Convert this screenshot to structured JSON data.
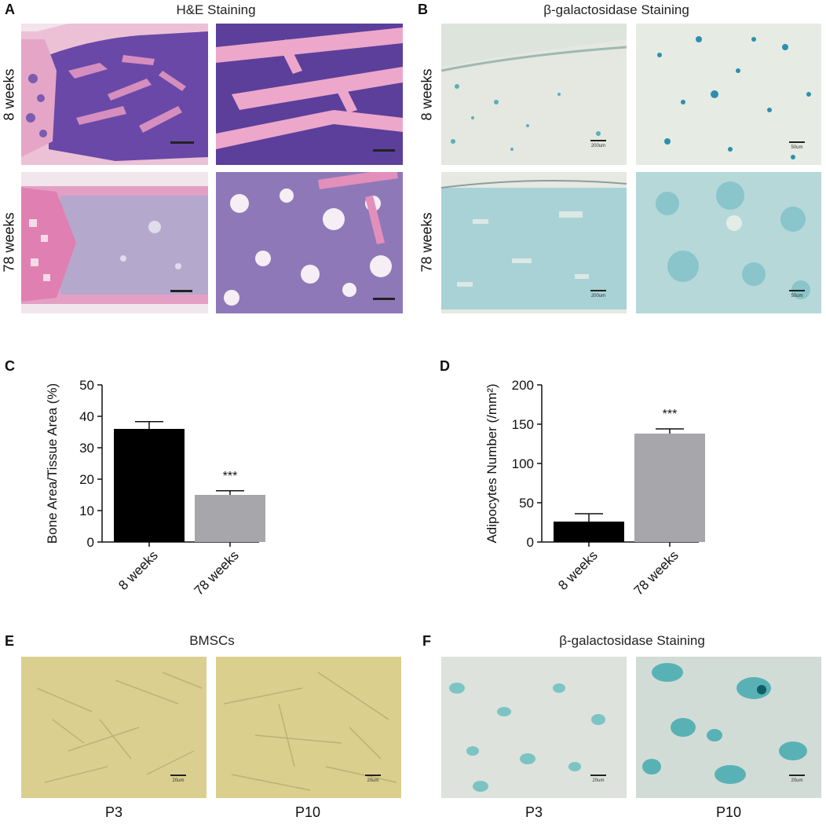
{
  "panels": {
    "A": {
      "letter": "A",
      "title": "H&E Staining",
      "rows": [
        "8 weeks",
        "78 weeks"
      ]
    },
    "B": {
      "letter": "B",
      "title": "β-galactosidase Staining",
      "rows": [
        "8 weeks",
        "78 weeks"
      ],
      "scale_left": "200um",
      "scale_right": "50um"
    },
    "C": {
      "letter": "C"
    },
    "D": {
      "letter": "D"
    },
    "E": {
      "letter": "E",
      "title": "BMSCs",
      "cols": [
        "P3",
        "P10"
      ],
      "scale": "20um"
    },
    "F": {
      "letter": "F",
      "title": "β-galactosidase Staining",
      "cols": [
        "P3",
        "P10"
      ],
      "scale": "20um"
    }
  },
  "colors": {
    "he_pink": "#e59ac0",
    "he_purple": "#5c3d9e",
    "xgal_bg": "#dfe6dd",
    "xgal_blue": "#3aa3b4",
    "bmsc_bg": "#d9cd8a",
    "bar_black": "#000000",
    "bar_grey": "#a6a6ab"
  },
  "chart_data": [
    {
      "type": "bar",
      "categories": [
        "8 weeks",
        "78 weeks"
      ],
      "values": [
        36,
        15
      ],
      "errors": [
        2.3,
        1.3
      ],
      "ylabel": "Bone Area/Tissue Area (%)",
      "ylim": [
        0,
        50
      ],
      "yticks": [
        0,
        10,
        20,
        30,
        40,
        50
      ],
      "annotation": "***",
      "bar_colors": [
        "#000000",
        "#a6a6ab"
      ]
    },
    {
      "type": "bar",
      "categories": [
        "8 weeks",
        "78 weeks"
      ],
      "values": [
        26,
        138
      ],
      "errors": [
        10,
        6
      ],
      "ylabel": "Adipocytes Number (/mm²)",
      "ylim": [
        0,
        200
      ],
      "yticks": [
        0,
        50,
        100,
        150,
        200
      ],
      "annotation": "***",
      "bar_colors": [
        "#000000",
        "#a6a6ab"
      ]
    }
  ]
}
